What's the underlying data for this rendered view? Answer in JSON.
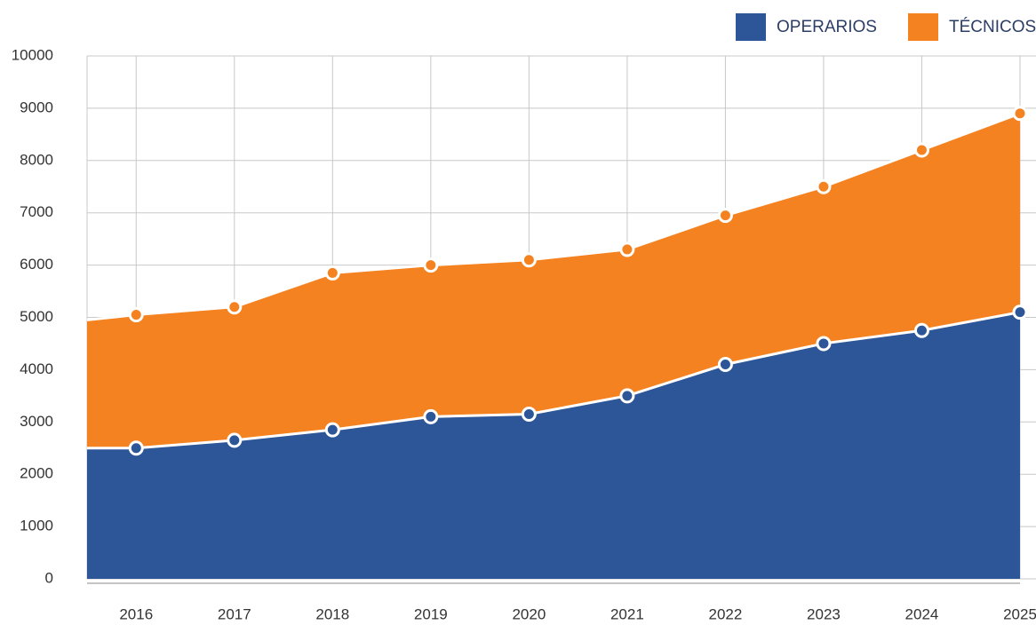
{
  "chart_data": {
    "type": "stacked_area",
    "x": [
      2015.5,
      2016,
      2017,
      2018,
      2019,
      2020,
      2021,
      2022,
      2023,
      2024,
      2025
    ],
    "series": [
      {
        "name": "OPERARIOS",
        "color": "#2c5697",
        "values": [
          2500,
          2500,
          2650,
          2850,
          3100,
          3150,
          3500,
          4100,
          4500,
          4750,
          5100
        ]
      },
      {
        "name": "TÉCNICOS",
        "color": "#f58220",
        "values": [
          2450,
          2550,
          2550,
          3000,
          2900,
          2950,
          2800,
          2850,
          3000,
          3450,
          3800
        ]
      }
    ],
    "xlim": [
      2015.5,
      2025
    ],
    "xticks": [
      2016,
      2017,
      2018,
      2019,
      2020,
      2021,
      2022,
      2023,
      2024,
      2025
    ],
    "ylim": [
      0,
      10000
    ],
    "yticks": [
      0,
      1000,
      2000,
      3000,
      4000,
      5000,
      6000,
      7000,
      8000,
      9000,
      10000
    ],
    "grid": true,
    "legend": "top-right"
  }
}
